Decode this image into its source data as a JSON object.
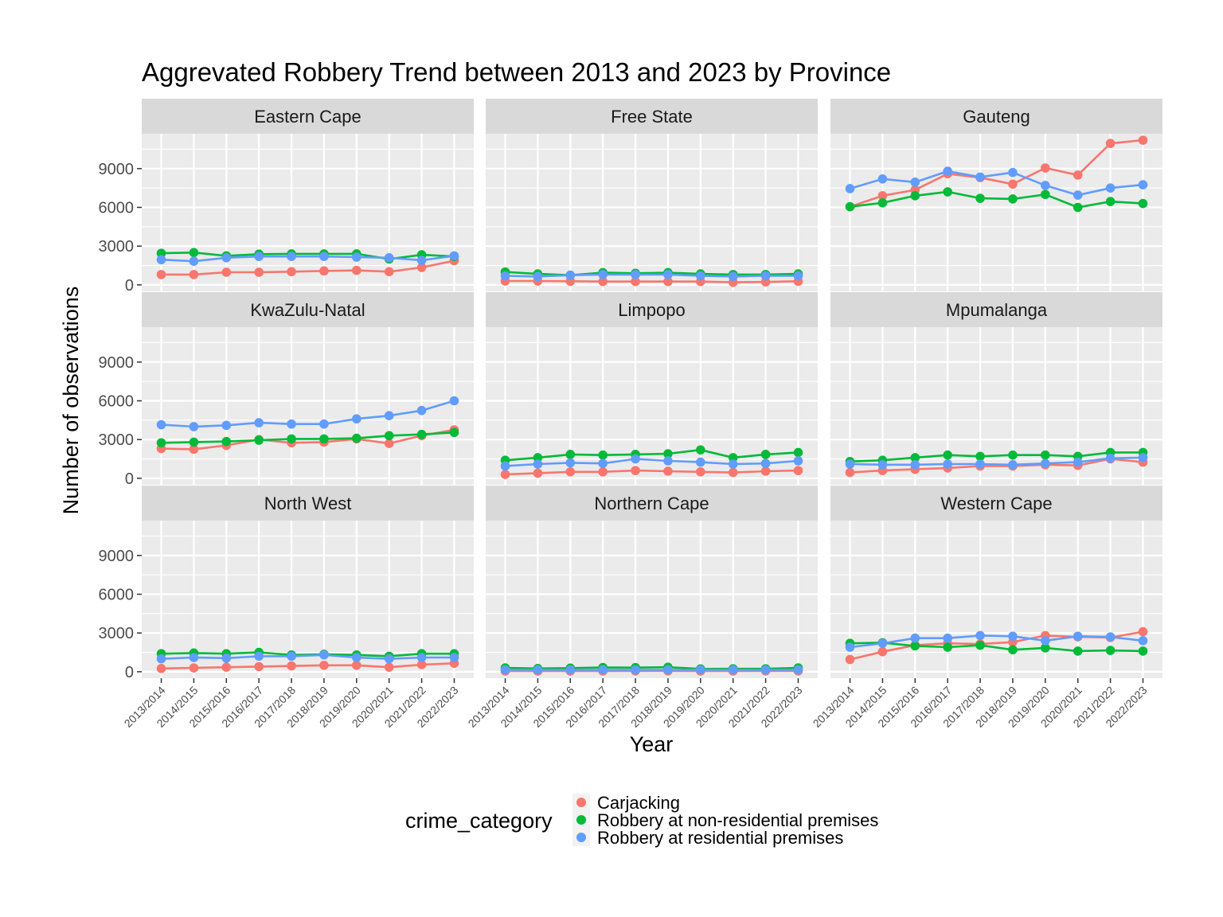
{
  "chart_data": {
    "type": "line",
    "title": "Aggrevated Robbery Trend between 2013 and 2023 by Province",
    "xlabel": "Year",
    "ylabel": "Number of observations",
    "x": [
      "2013/2014",
      "2014/2015",
      "2015/2016",
      "2016/2017",
      "2017/2018",
      "2018/2019",
      "2019/2020",
      "2020/2021",
      "2021/2022",
      "2022/2023"
    ],
    "ylim": [
      -500,
      11700
    ],
    "yticks": [
      0,
      3000,
      6000,
      9000
    ],
    "ytick_labels": [
      "0",
      "3000",
      "6000",
      "9000"
    ],
    "grid": true,
    "legend": {
      "title": "crime_category",
      "position": "bottom",
      "entries": [
        "Carjacking",
        "Robbery at non-residential premises",
        "Robbery at residential premises"
      ]
    },
    "series_colors": {
      "Carjacking": "#F8766D",
      "Robbery at non-residential premises": "#00BA38",
      "Robbery at residential premises": "#619CFF"
    },
    "facets": [
      {
        "province": "Eastern Cape",
        "series": [
          {
            "name": "Carjacking",
            "values": [
              800,
              800,
              980,
              980,
              1020,
              1080,
              1120,
              1020,
              1350,
              1870
            ]
          },
          {
            "name": "Robbery at non-residential premises",
            "values": [
              2450,
              2500,
              2250,
              2380,
              2400,
              2400,
              2400,
              2000,
              2330,
              2200
            ]
          },
          {
            "name": "Robbery at residential premises",
            "values": [
              1950,
              1830,
              2100,
              2200,
              2200,
              2200,
              2150,
              2100,
              1900,
              2250
            ]
          }
        ]
      },
      {
        "province": "Free State",
        "series": [
          {
            "name": "Carjacking",
            "values": [
              300,
              300,
              280,
              260,
              260,
              260,
              260,
              200,
              230,
              280
            ]
          },
          {
            "name": "Robbery at non-residential premises",
            "values": [
              1000,
              850,
              750,
              950,
              900,
              950,
              850,
              800,
              800,
              850
            ]
          },
          {
            "name": "Robbery at residential premises",
            "values": [
              700,
              650,
              750,
              800,
              800,
              800,
              700,
              650,
              700,
              700
            ]
          }
        ]
      },
      {
        "province": "Gauteng",
        "series": [
          {
            "name": "Carjacking",
            "values": [
              6050,
              6900,
              7350,
              8600,
              8300,
              7800,
              9050,
              8500,
              10950,
              11200
            ]
          },
          {
            "name": "Robbery at non-residential premises",
            "values": [
              6050,
              6350,
              6900,
              7200,
              6700,
              6650,
              7000,
              6000,
              6450,
              6300
            ]
          },
          {
            "name": "Robbery at residential premises",
            "values": [
              7450,
              8200,
              7950,
              8800,
              8350,
              8700,
              7700,
              6950,
              7500,
              7750
            ]
          }
        ]
      },
      {
        "province": "KwaZulu-Natal",
        "series": [
          {
            "name": "Carjacking",
            "values": [
              2300,
              2250,
              2550,
              3000,
              2750,
              2800,
              3050,
              2700,
              3300,
              3750
            ]
          },
          {
            "name": "Robbery at non-residential premises",
            "values": [
              2750,
              2800,
              2850,
              2950,
              3050,
              3050,
              3100,
              3300,
              3400,
              3550
            ]
          },
          {
            "name": "Robbery at residential premises",
            "values": [
              4150,
              4000,
              4100,
              4300,
              4200,
              4200,
              4600,
              4850,
              5250,
              6000
            ]
          }
        ]
      },
      {
        "province": "Limpopo",
        "series": [
          {
            "name": "Carjacking",
            "values": [
              300,
              400,
              500,
              500,
              600,
              550,
              500,
              450,
              550,
              600
            ]
          },
          {
            "name": "Robbery at non-residential premises",
            "values": [
              1400,
              1600,
              1850,
              1800,
              1850,
              1900,
              2200,
              1600,
              1850,
              2000
            ]
          },
          {
            "name": "Robbery at residential premises",
            "values": [
              950,
              1100,
              1200,
              1150,
              1500,
              1350,
              1250,
              1100,
              1150,
              1350
            ]
          }
        ]
      },
      {
        "province": "Mpumalanga",
        "series": [
          {
            "name": "Carjacking",
            "values": [
              450,
              600,
              700,
              800,
              950,
              950,
              1050,
              1000,
              1500,
              1250
            ]
          },
          {
            "name": "Robbery at non-residential premises",
            "values": [
              1300,
              1400,
              1600,
              1800,
              1700,
              1800,
              1800,
              1700,
              2000,
              2000
            ]
          },
          {
            "name": "Robbery at residential premises",
            "values": [
              1100,
              1050,
              1050,
              1100,
              1100,
              1050,
              1150,
              1250,
              1550,
              1600
            ]
          }
        ]
      },
      {
        "province": "North West",
        "series": [
          {
            "name": "Carjacking",
            "values": [
              250,
              300,
              350,
              400,
              450,
              500,
              500,
              350,
              550,
              650
            ]
          },
          {
            "name": "Robbery at non-residential premises",
            "values": [
              1400,
              1450,
              1400,
              1500,
              1300,
              1350,
              1300,
              1200,
              1400,
              1400
            ]
          },
          {
            "name": "Robbery at residential premises",
            "values": [
              1000,
              1100,
              1050,
              1200,
              1200,
              1300,
              1100,
              1000,
              1100,
              1100
            ]
          }
        ]
      },
      {
        "province": "Northern Cape",
        "series": [
          {
            "name": "Carjacking",
            "values": [
              50,
              50,
              50,
              50,
              60,
              60,
              50,
              50,
              60,
              60
            ]
          },
          {
            "name": "Robbery at non-residential premises",
            "values": [
              300,
              250,
              280,
              330,
              320,
              350,
              220,
              230,
              230,
              300
            ]
          },
          {
            "name": "Robbery at residential premises",
            "values": [
              150,
              150,
              150,
              150,
              150,
              150,
              150,
              150,
              150,
              150
            ]
          }
        ]
      },
      {
        "province": "Western Cape",
        "series": [
          {
            "name": "Carjacking",
            "values": [
              950,
              1550,
              2050,
              2200,
              2150,
              2300,
              2800,
              2700,
              2650,
              3100
            ]
          },
          {
            "name": "Robbery at non-residential premises",
            "values": [
              2200,
              2250,
              2000,
              1900,
              2050,
              1700,
              1850,
              1600,
              1650,
              1600
            ]
          },
          {
            "name": "Robbery at residential premises",
            "values": [
              1900,
              2200,
              2600,
              2600,
              2800,
              2750,
              2400,
              2750,
              2700,
              2400
            ]
          }
        ]
      }
    ]
  }
}
